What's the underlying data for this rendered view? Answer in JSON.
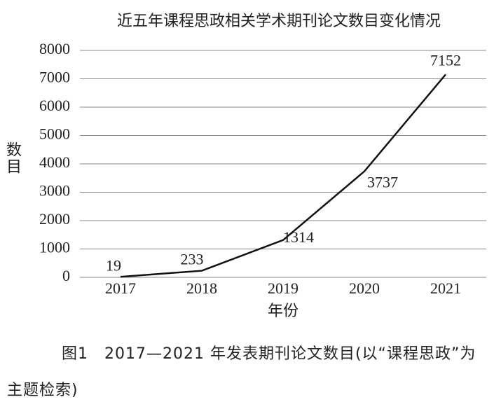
{
  "chart_data": {
    "type": "line",
    "title": "近五年课程思政相关学术期刊论文数目变化情况",
    "x_label": "年份",
    "y_label": "数目",
    "categories": [
      "2017",
      "2018",
      "2019",
      "2020",
      "2021"
    ],
    "values": [
      19,
      233,
      1314,
      3737,
      7152
    ],
    "color": "#111111",
    "ylim": [
      0,
      8000
    ],
    "yticks": [
      0,
      1000,
      2000,
      3000,
      4000,
      5000,
      6000,
      7000,
      8000
    ],
    "grid": true
  },
  "caption": "图1　2017—2021 年发表期刊论文数目(以“课程思政”为主题检索)"
}
